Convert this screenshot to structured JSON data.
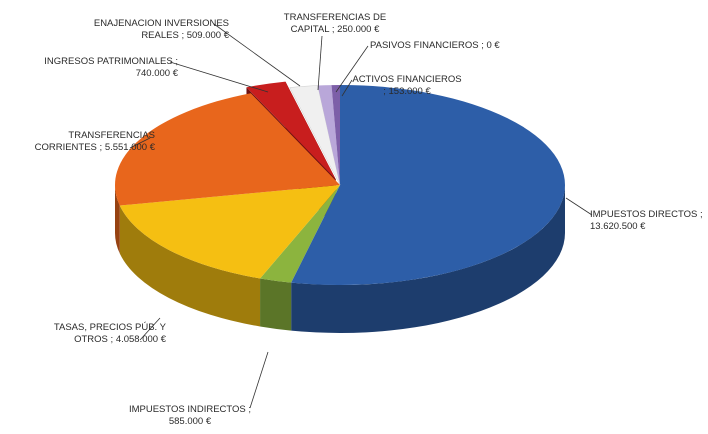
{
  "chart_data": {
    "type": "pie3d",
    "categories": [
      "IMPUESTOS DIRECTOS",
      "IMPUESTOS INDIRECTOS",
      "TASAS, PRECIOS PÚB. Y OTROS",
      "TRANSFERENCIAS CORRIENTES",
      "INGRESOS PATRIMONIALES",
      "ENAJENACION INVERSIONES REALES",
      "TRANSFERENCIAS DE CAPITAL",
      "ACTIVOS FINANCIEROS",
      "PASIVOS FINANCIEROS"
    ],
    "values": [
      13620500,
      585000,
      4058000,
      5551000,
      740000,
      509000,
      250000,
      153000,
      0
    ],
    "value_labels": [
      "13.620.500 €",
      "585.000 €",
      "4.058.000 €",
      "5.551.000 €",
      "740.000 €",
      "509.000 €",
      "250.000 €",
      "153.000 €",
      "0 €"
    ],
    "separator": ";",
    "colors": [
      "#2d5ea8",
      "#8cb43e",
      "#f5bf12",
      "#e8661c",
      "#c81e1e",
      "#f0f0f0",
      "#b9a7d9",
      "#7d5fa8",
      "#555555"
    ]
  }
}
